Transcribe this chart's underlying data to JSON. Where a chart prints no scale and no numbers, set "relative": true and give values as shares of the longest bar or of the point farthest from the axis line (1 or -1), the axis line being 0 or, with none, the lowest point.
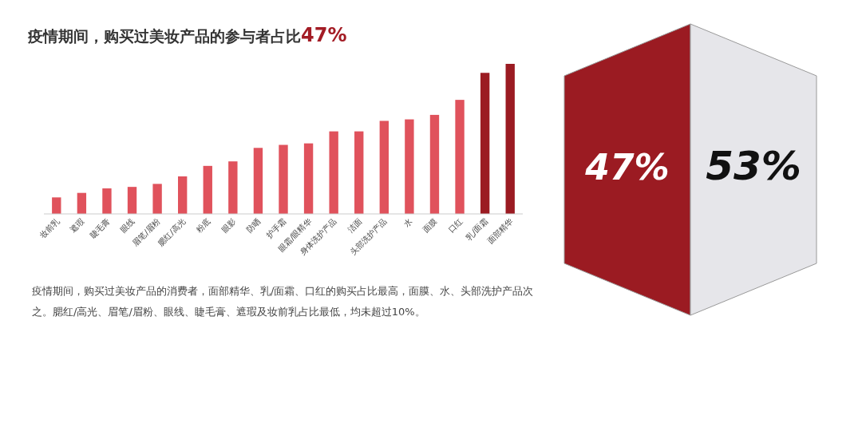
{
  "chart_data": [
    {
      "type": "bar",
      "relative": true,
      "title": "疫情期间，购买过美妆产品的参与者占比47%",
      "categories": [
        "妆前乳",
        "遮瑕",
        "睫毛膏",
        "眼线",
        "眉笔/眉粉",
        "腮红/高光",
        "粉底",
        "眼影",
        "防晒",
        "护手霜",
        "眼霜/眼精华",
        "身体洗护产品",
        "洁面",
        "头部洗护产品",
        "水",
        "面膜",
        "口红",
        "乳/面霜",
        "面部精华"
      ],
      "values": [
        0.11,
        0.14,
        0.17,
        0.18,
        0.2,
        0.25,
        0.32,
        0.35,
        0.44,
        0.46,
        0.47,
        0.55,
        0.55,
        0.62,
        0.63,
        0.66,
        0.76,
        0.94,
        1
      ],
      "colors": [
        "#e0525c",
        "#e0525c",
        "#e0525c",
        "#e0525c",
        "#e0525c",
        "#e0525c",
        "#e0525c",
        "#e0525c",
        "#e0525c",
        "#e0525c",
        "#e0525c",
        "#e0525c",
        "#e0525c",
        "#e0525c",
        "#e0525c",
        "#e0525c",
        "#e0525c",
        "#9b1b22",
        "#9b1b22"
      ],
      "annotations": [
        "疫情期间，购买过美妆产品的消费者，面部精华、乳/面霜、口红的购买占比最高，面膜、水、头部洗护产品次之。腮红/高光、眉笔/眉粉、眼线、睫毛膏、遮瑕及妆前乳占比最低，均未超过10%。"
      ]
    },
    {
      "type": "other",
      "colors": [
        "#9b1b22",
        "#e6e6ea"
      ],
      "annotations": [
        "47%",
        "53%"
      ]
    }
  ]
}
